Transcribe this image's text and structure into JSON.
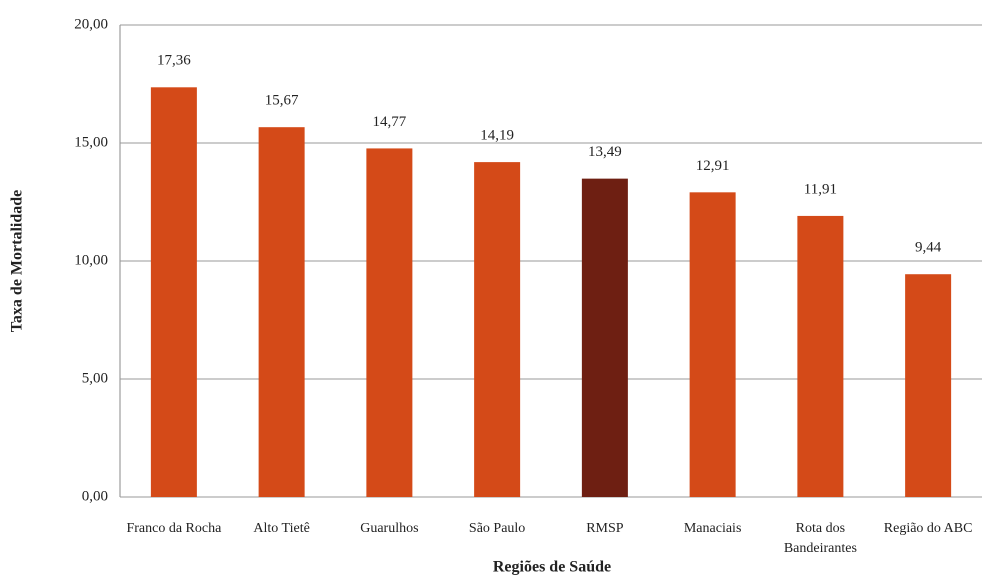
{
  "chart_data": {
    "type": "bar",
    "x_label": "Regiões de Saúde",
    "y_label": "Taxa de Mortalidade",
    "categories": [
      "Franco da Rocha",
      "Alto Tietê",
      "Guarulhos",
      "São Paulo",
      "RMSP",
      "Manaciais",
      "Rota dos Bandeirantes",
      "Região do ABC"
    ],
    "values": [
      17.36,
      15.67,
      14.77,
      14.19,
      13.49,
      12.91,
      11.91,
      9.44
    ],
    "value_labels": [
      "17,36",
      "15,67",
      "14,77",
      "14,19",
      "13,49",
      "12,91",
      "11,91",
      "9,44"
    ],
    "colors": [
      "#d44a18",
      "#d44a18",
      "#d44a18",
      "#d44a18",
      "#6e1f12",
      "#d44a18",
      "#d44a18",
      "#d44a18"
    ],
    "ylim": [
      0,
      20
    ],
    "yticks": [
      {
        "value": 0,
        "label": "0,00"
      },
      {
        "value": 5,
        "label": "5,00"
      },
      {
        "value": 10,
        "label": "10,00"
      },
      {
        "value": 15,
        "label": "15,00"
      },
      {
        "value": 20,
        "label": "20,00"
      }
    ],
    "grid": true
  }
}
